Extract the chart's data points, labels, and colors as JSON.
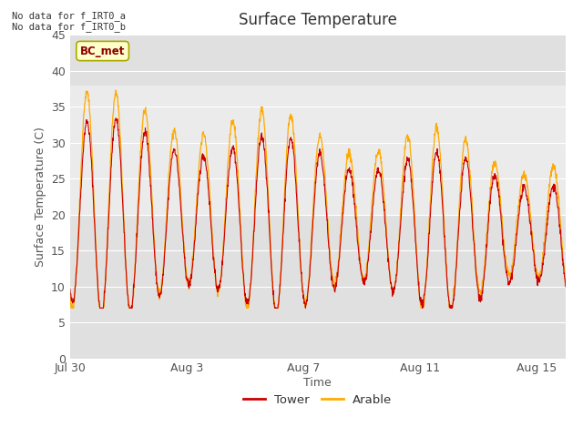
{
  "title": "Surface Temperature",
  "xlabel": "Time",
  "ylabel": "Surface Temperature (C)",
  "ylim": [
    0,
    45
  ],
  "yticks": [
    0,
    5,
    10,
    15,
    20,
    25,
    30,
    35,
    40,
    45
  ],
  "background_color": "#ffffff",
  "plot_bg_color": "#e0e0e0",
  "tower_color": "#cc0000",
  "arable_color": "#ffaa00",
  "annotation_text": "No data for f_IRT0_a\nNo data for f_IRT0_b",
  "bc_met_label": "BC_met",
  "legend_tower": "Tower",
  "legend_arable": "Arable",
  "x_tick_labels": [
    "Jul 30",
    "Aug 3",
    "Aug 7",
    "Aug 11",
    "Aug 15"
  ],
  "x_tick_positions": [
    0,
    4,
    8,
    12,
    16
  ],
  "num_days": 17,
  "pts_per_day": 96,
  "gray_band_ymin": 20,
  "gray_band_ymax": 38,
  "title_fontsize": 12,
  "axis_label_fontsize": 9,
  "tick_fontsize": 9
}
